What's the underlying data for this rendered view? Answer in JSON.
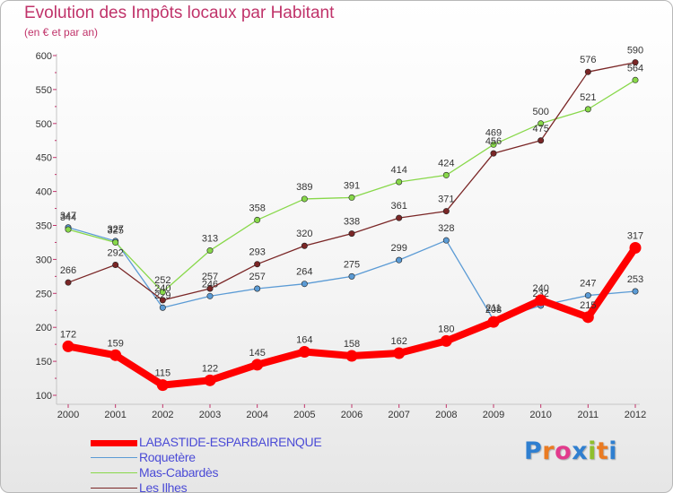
{
  "title": "Evolution des Impôts locaux par Habitant",
  "subtitle": "(en € et par an)",
  "logo": {
    "text": "Proxiti",
    "letter_colors": [
      "#2f7fd0",
      "#ea7b22",
      "#e23a8c",
      "#2f7fd0",
      "#8fbf2d",
      "#ea7b22",
      "#2f7fd0"
    ]
  },
  "chart_data": {
    "type": "line",
    "title": "Evolution des Impôts locaux par Habitant",
    "subtitle": "(en € et par an)",
    "xlabel": "",
    "ylabel": "",
    "x": [
      2000,
      2001,
      2002,
      2003,
      2004,
      2005,
      2006,
      2007,
      2008,
      2009,
      2010,
      2011,
      2012
    ],
    "ylim": [
      100,
      600
    ],
    "yticks": [
      100,
      150,
      200,
      250,
      300,
      350,
      400,
      450,
      500,
      550,
      600
    ],
    "grid": false,
    "legend_position": "bottom-left",
    "series": [
      {
        "name": "LABASTIDE-ESPARBAIRENQUE",
        "color": "#ff0000",
        "emphasis": true,
        "values": [
          172,
          159,
          115,
          122,
          145,
          164,
          158,
          162,
          180,
          208,
          240,
          215,
          317
        ],
        "labels": [
          "172",
          "159",
          "115",
          "122",
          "145",
          "164",
          "158",
          "162",
          "180",
          "208",
          "240",
          "215",
          "317"
        ]
      },
      {
        "name": "Roquetère",
        "color": "#5b9bd5",
        "emphasis": false,
        "values": [
          347,
          327,
          229,
          246,
          257,
          264,
          275,
          299,
          328,
          211,
          232,
          247,
          253
        ],
        "labels": [
          "347",
          "327",
          "229",
          "246",
          "257",
          "264",
          "275",
          "299",
          "328",
          "211",
          "232",
          "247",
          "253"
        ]
      },
      {
        "name": "Mas-Cabardès",
        "color": "#88d84a",
        "emphasis": false,
        "values": [
          344,
          325,
          252,
          313,
          358,
          389,
          391,
          414,
          424,
          469,
          500,
          521,
          564
        ],
        "labels": [
          "344",
          "325",
          "252",
          "313",
          "358",
          "389",
          "391",
          "414",
          "424",
          "469",
          "500",
          "521",
          "564"
        ]
      },
      {
        "name": "Les Ilhes",
        "color": "#7a2626",
        "emphasis": false,
        "values": [
          266,
          292,
          240,
          257,
          293,
          320,
          338,
          361,
          371,
          456,
          475,
          576,
          590
        ],
        "labels": [
          "266",
          "292",
          "240",
          "257",
          "293",
          "320",
          "338",
          "361",
          "371",
          "456",
          "475",
          "576",
          "590"
        ]
      }
    ]
  }
}
